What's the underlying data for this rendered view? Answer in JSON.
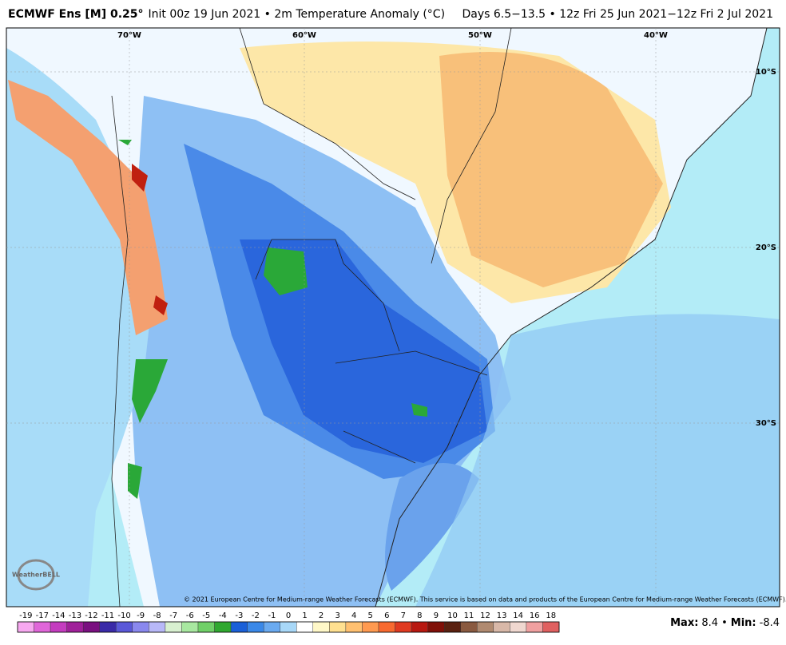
{
  "header": {
    "model": "ECMWF Ens [M] 0.25°",
    "init": "Init 00z 19 Jun 2021 • 2m Temperature Anomaly (°C)",
    "valid": "Days 6.5−13.5 • 12z Fri 25 Jun 2021−12z Fri 2 Jul 2021"
  },
  "map": {
    "lon_labels": [
      "70°W",
      "60°W",
      "50°W",
      "40°W"
    ],
    "lat_labels": [
      "10°S",
      "20°S",
      "30°S"
    ],
    "copyright": "© 2021 European Centre for Medium-range Weather Forecasts (ECMWF). This service is based on data and products of the European Centre for Medium-range Weather Forecasts (ECMWF).",
    "logo": "WeatherBELL"
  },
  "colorbar": {
    "labels": [
      -19,
      -17,
      -14,
      -13,
      -12,
      -11,
      -10,
      -9,
      -8,
      -7,
      -6,
      -5,
      -4,
      -3,
      -2,
      -1,
      0,
      1,
      2,
      3,
      4,
      5,
      6,
      7,
      8,
      9,
      10,
      11,
      12,
      13,
      14,
      16,
      18
    ],
    "colors": [
      "#f7a8f0",
      "#e066d9",
      "#c43cbf",
      "#a0209a",
      "#7a1080",
      "#3a2aa8",
      "#5a58d8",
      "#8a88ee",
      "#b8b8f8",
      "#d8f0d0",
      "#a8e8a0",
      "#70d068",
      "#30a830",
      "#1a60d8",
      "#3a88e8",
      "#6aaaf0",
      "#a8d8f8",
      "#ffffff",
      "#fff8c8",
      "#ffe090",
      "#ffc070",
      "#ff9a50",
      "#f86a30",
      "#e03a20",
      "#b81810",
      "#801008",
      "#5a2010",
      "#8a5a40",
      "#b08a70",
      "#d8b8a8",
      "#f0d8d0",
      "#f0a0a0",
      "#e06060"
    ]
  },
  "stats": {
    "max_label": "Max:",
    "max": 8.4,
    "sep": "•",
    "min_label": "Min:",
    "min": -8.4
  }
}
